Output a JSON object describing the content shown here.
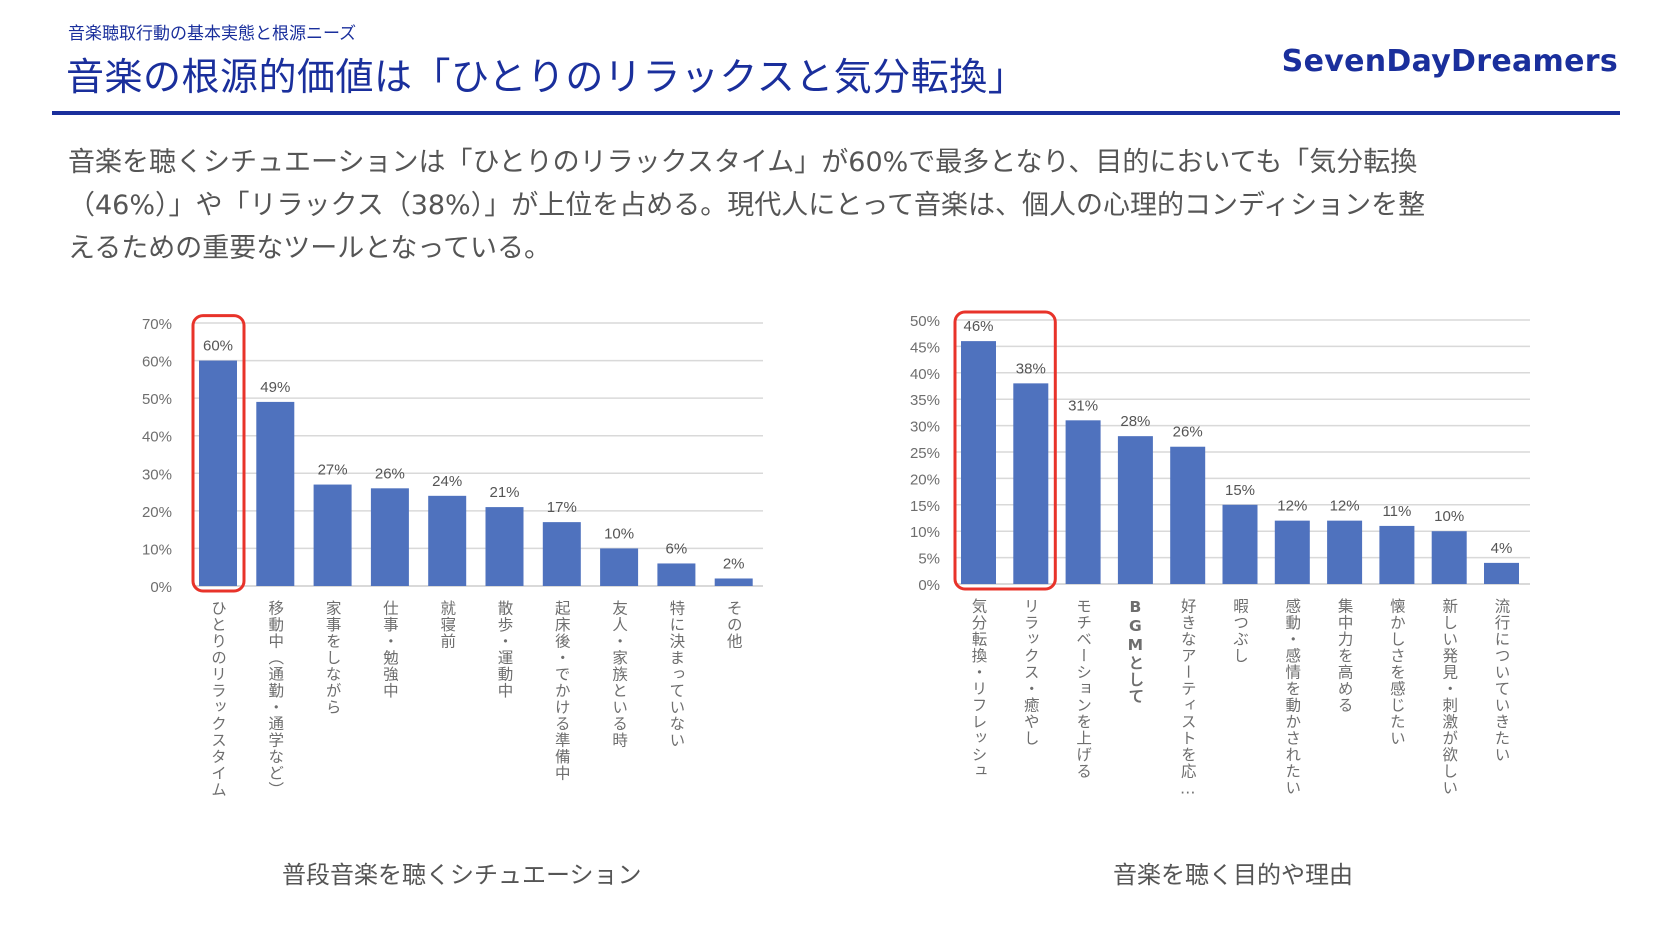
{
  "header": {
    "subtitle": "音楽聴取行動の基本実態と根源ニーズ",
    "title": "音楽の根源的価値は「ひとりのリラックスと気分転換」",
    "logo": "SevenDayDreamers"
  },
  "body": {
    "lines": [
      "音楽を聴くシチュエーションは「ひとりのリラックスタイム」が60%で最多となり、目的においても「気分転換",
      "（46%）」や「リラックス（38%）」が上位を占める。現代人にとって音楽は、個人の心理的コンディションを整",
      "えるための重要なツールとなっている。"
    ]
  },
  "colors": {
    "brand": "#1a2f9c",
    "bar": "#4f72be",
    "highlight": "#e8332a",
    "grid": "#d9d9d9",
    "text": "#595959"
  },
  "chart_data": [
    {
      "type": "bar",
      "title": "普段音楽を聴くシチュエーション",
      "categories": [
        "ひとりのリラックスタイム",
        "移動中（通勤・通学など）",
        "家事をしながら",
        "仕事・勉強中",
        "就寝前",
        "散歩・運動中",
        "起床後・でかける準備中",
        "友人・家族といる時",
        "特に決まっていない",
        "その他"
      ],
      "values": [
        60,
        49,
        27,
        26,
        24,
        21,
        17,
        10,
        6,
        2
      ],
      "data_labels": [
        "60%",
        "49%",
        "27%",
        "26%",
        "24%",
        "21%",
        "17%",
        "10%",
        "6%",
        "2%"
      ],
      "yticks": [
        "0%",
        "10%",
        "20%",
        "30%",
        "40%",
        "50%",
        "60%",
        "70%"
      ],
      "ylim": [
        0,
        70
      ],
      "ystep": 10,
      "highlighted_indices": [
        0
      ],
      "grid": true,
      "xlabel": "",
      "ylabel": ""
    },
    {
      "type": "bar",
      "title": "音楽を聴く目的や理由",
      "categories": [
        "気分転換・リフレッシュ",
        "リラックス・癒やし",
        "モチベーションを上げる",
        "BGMとして",
        "好きなアーティストを応…",
        "暇つぶし",
        "感動・感情を動かされたい",
        "集中力を高める",
        "懐かしさを感じたい",
        "新しい発見・刺激が欲しい",
        "流行についていきたい"
      ],
      "values": [
        46,
        38,
        31,
        28,
        26,
        15,
        12,
        12,
        11,
        10,
        4
      ],
      "data_labels": [
        "46%",
        "38%",
        "31%",
        "28%",
        "26%",
        "15%",
        "12%",
        "12%",
        "11%",
        "10%",
        "4%"
      ],
      "yticks": [
        "0%",
        "5%",
        "10%",
        "15%",
        "20%",
        "25%",
        "30%",
        "35%",
        "40%",
        "45%",
        "50%"
      ],
      "ylim": [
        0,
        50
      ],
      "ystep": 5,
      "highlighted_indices": [
        0,
        1
      ],
      "grid": true,
      "xlabel": "",
      "ylabel": ""
    }
  ]
}
